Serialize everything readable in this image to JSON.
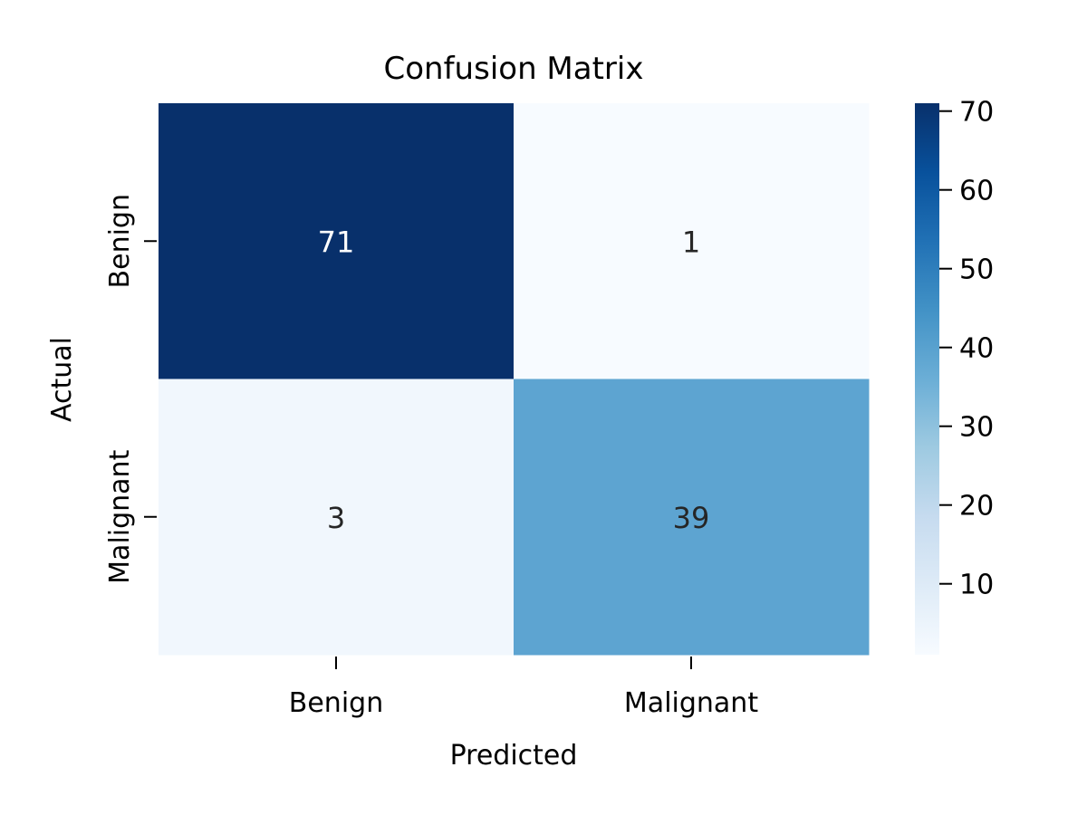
{
  "chart_data": {
    "type": "heatmap",
    "title": "Confusion Matrix",
    "xlabel": "Predicted",
    "ylabel": "Actual",
    "x_categories": [
      "Benign",
      "Malignant"
    ],
    "y_categories": [
      "Benign",
      "Malignant"
    ],
    "values": [
      [
        71,
        1
      ],
      [
        3,
        39
      ]
    ],
    "colormap": "Blues",
    "colorbar": {
      "min": 1,
      "max": 71,
      "ticks": [
        10,
        20,
        30,
        40,
        50,
        60,
        70
      ]
    },
    "annotation_colors": {
      "dark_text": "#262626",
      "light_text": "#ffffff"
    }
  }
}
